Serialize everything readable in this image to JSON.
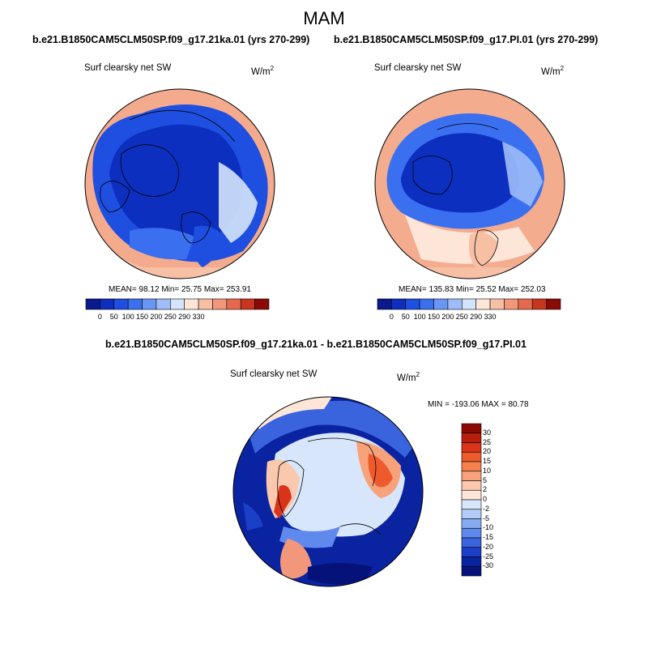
{
  "season": "MAM",
  "panels": [
    {
      "title": "b.e21.B1850CAM5CLM50SP.f09_g17.21ka.01 (yrs 270-299)",
      "variable": "Surf clearsky net SW",
      "units": "W/m",
      "units_sup": "2",
      "stats": "MEAN=  98.12  Min=  25.75  Max= 253.91"
    },
    {
      "title": "b.e21.B1850CAM5CLM50SP.f09_g17.PI.01 (yrs 270-299)",
      "variable": "Surf clearsky net SW",
      "units": "W/m",
      "units_sup": "2",
      "stats": "MEAN= 135.83  Min=  25.52  Max= 252.03"
    }
  ],
  "diff_panel": {
    "title": "b.e21.B1850CAM5CLM50SP.f09_g17.21ka.01 - b.e21.B1850CAM5CLM50SP.f09_g17.PI.01",
    "variable": "Surf clearsky net SW",
    "units": "W/m",
    "units_sup": "2",
    "stats": "MIN = -193.06 MAX =  80.78"
  },
  "abs_colorbar": {
    "ticks": [
      "0",
      "50",
      "100",
      "150",
      "200",
      "250",
      "290",
      "330"
    ],
    "colors": [
      "#0a1a8c",
      "#0d2fc0",
      "#1f4fe0",
      "#3a6ff0",
      "#6a97f5",
      "#9dbcf8",
      "#d4e4fb",
      "#fde6d8",
      "#f7c0a5",
      "#f2977a",
      "#e56a4d",
      "#c8361f",
      "#8c0a05"
    ]
  },
  "diff_colorbar": {
    "ticks": [
      "30",
      "25",
      "20",
      "15",
      "10",
      "5",
      "2",
      "0",
      "-2",
      "-5",
      "-10",
      "-15",
      "-20",
      "-25",
      "-30"
    ],
    "colors": [
      "#8c0a05",
      "#b81e0d",
      "#d9331a",
      "#ef5a2c",
      "#f5804e",
      "#f7a27a",
      "#fac8ad",
      "#fde6d8",
      "#d8e6fb",
      "#b3ccf7",
      "#88acf2",
      "#5f89ec",
      "#3a63de",
      "#1b3fc6",
      "#0a23a0",
      "#05127a"
    ]
  }
}
